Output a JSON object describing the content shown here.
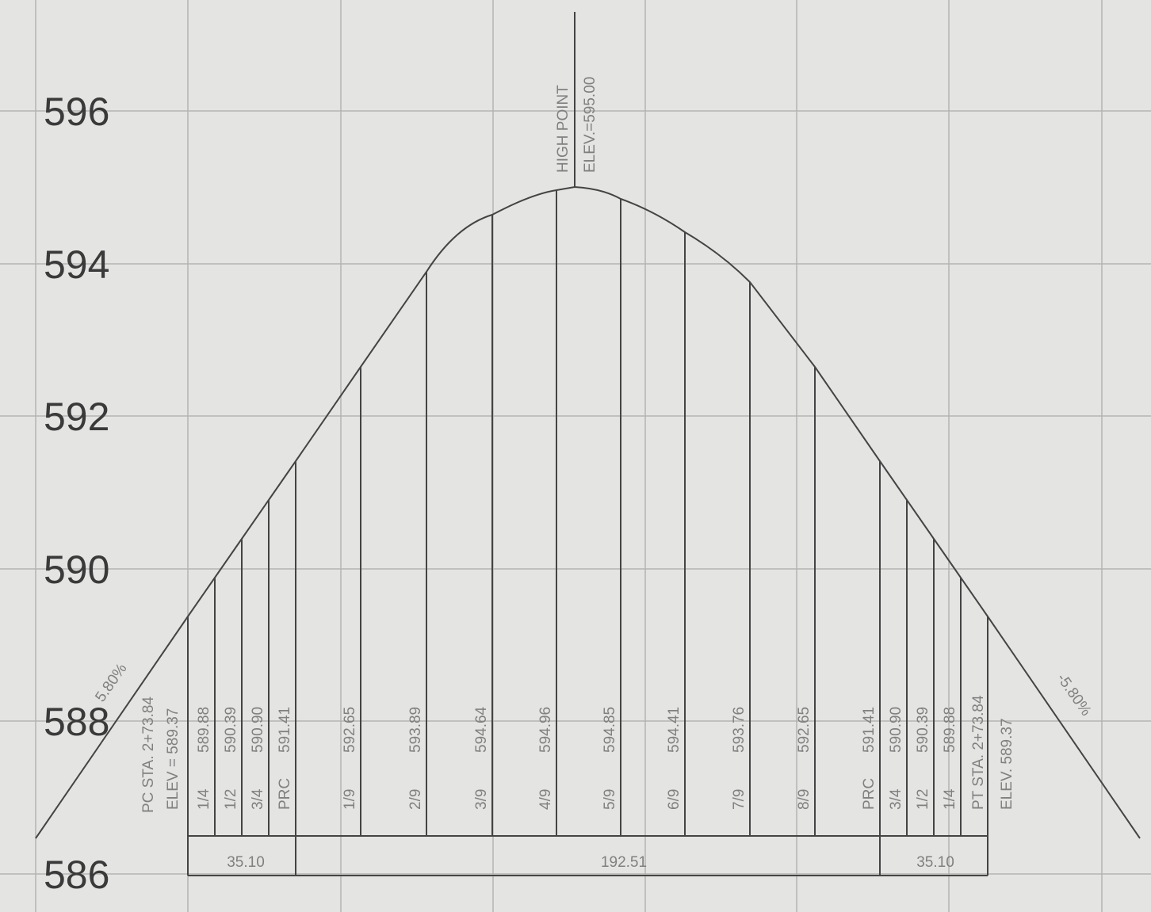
{
  "axis_labels": [
    "596",
    "594",
    "592",
    "590",
    "588",
    "586"
  ],
  "grades": {
    "left": "5.80%",
    "right": "-5.80%"
  },
  "high_point": {
    "title": "HIGH POINT",
    "elev": "ELEV.=595.00"
  },
  "pc": {
    "sta": "PC STA. 2+73.84",
    "elev": "ELEV = 589.37"
  },
  "pt": {
    "sta": "PT STA. 2+73.84",
    "elev": "ELEV. 589.37"
  },
  "stations": [
    {
      "label": "1/4",
      "elev": "589.88"
    },
    {
      "label": "1/2",
      "elev": "590.39"
    },
    {
      "label": "3/4",
      "elev": "590.90"
    },
    {
      "label": "PRC",
      "elev": "591.41"
    },
    {
      "label": "1/9",
      "elev": "592.65"
    },
    {
      "label": "2/9",
      "elev": "593.89"
    },
    {
      "label": "3/9",
      "elev": "594.64"
    },
    {
      "label": "4/9",
      "elev": "594.96"
    },
    {
      "label": "5/9",
      "elev": "594.85"
    },
    {
      "label": "6/9",
      "elev": "594.41"
    },
    {
      "label": "7/9",
      "elev": "593.76"
    },
    {
      "label": "8/9",
      "elev": "592.65"
    },
    {
      "label": "PRC",
      "elev": "591.41"
    },
    {
      "label": "3/4",
      "elev": "590.90"
    },
    {
      "label": "1/2",
      "elev": "590.39"
    },
    {
      "label": "1/4",
      "elev": "589.88"
    }
  ],
  "dimensions": [
    "35.10",
    "192.51",
    "35.10"
  ]
}
